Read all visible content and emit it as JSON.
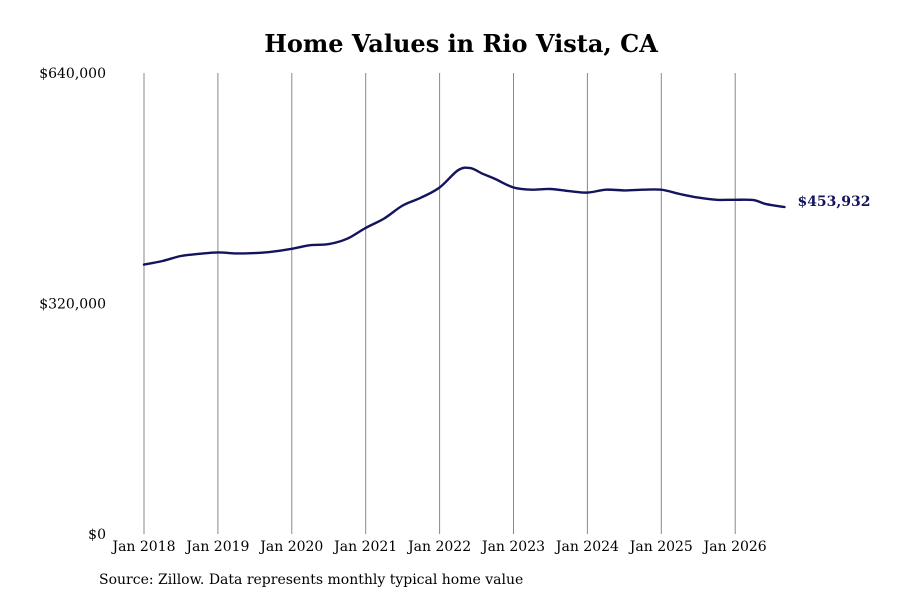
{
  "footer": {
    "source": "Source: Zillow. Data represents monthly typical home value"
  },
  "colors": {
    "line": "#14145e",
    "grid": "#888888",
    "end_label": "#14145e"
  },
  "chart_data": {
    "type": "line",
    "title": "Home Values in Rio Vista, CA",
    "xlabel": "",
    "ylabel": "",
    "x_tick_labels": [
      "Jan 2018",
      "Jan 2019",
      "Jan 2020",
      "Jan 2021",
      "Jan 2022",
      "Jan 2023",
      "Jan 2024",
      "Jan 2025",
      "Jan 2026"
    ],
    "y_tick_labels": [
      "$640,000",
      "$320,000",
      "$0"
    ],
    "y_ticks": [
      640000,
      320000,
      0
    ],
    "ylim": [
      0,
      640000
    ],
    "xlim": [
      "2018-01",
      "2026-09"
    ],
    "grid": "vertical",
    "end_label": "$453,932",
    "series": [
      {
        "values": [
          {
            "x": "2018-01",
            "y": 374000
          },
          {
            "x": "2018-04",
            "y": 379000
          },
          {
            "x": "2018-07",
            "y": 386000
          },
          {
            "x": "2018-10",
            "y": 389000
          },
          {
            "x": "2019-01",
            "y": 391000
          },
          {
            "x": "2019-04",
            "y": 389500
          },
          {
            "x": "2019-07",
            "y": 390000
          },
          {
            "x": "2019-10",
            "y": 392000
          },
          {
            "x": "2020-01",
            "y": 396000
          },
          {
            "x": "2020-04",
            "y": 401000
          },
          {
            "x": "2020-07",
            "y": 402500
          },
          {
            "x": "2020-10",
            "y": 410000
          },
          {
            "x": "2021-01",
            "y": 425000
          },
          {
            "x": "2021-04",
            "y": 438000
          },
          {
            "x": "2021-07",
            "y": 456000
          },
          {
            "x": "2021-10",
            "y": 467000
          },
          {
            "x": "2022-01",
            "y": 481000
          },
          {
            "x": "2022-04",
            "y": 505000
          },
          {
            "x": "2022-06",
            "y": 508000
          },
          {
            "x": "2022-08",
            "y": 500000
          },
          {
            "x": "2022-10",
            "y": 493000
          },
          {
            "x": "2023-01",
            "y": 481000
          },
          {
            "x": "2023-04",
            "y": 478000
          },
          {
            "x": "2023-07",
            "y": 479000
          },
          {
            "x": "2023-10",
            "y": 476000
          },
          {
            "x": "2024-01",
            "y": 474000
          },
          {
            "x": "2024-04",
            "y": 478000
          },
          {
            "x": "2024-07",
            "y": 477000
          },
          {
            "x": "2024-10",
            "y": 478000
          },
          {
            "x": "2025-01",
            "y": 478000
          },
          {
            "x": "2025-04",
            "y": 472000
          },
          {
            "x": "2025-07",
            "y": 467000
          },
          {
            "x": "2025-10",
            "y": 464000
          },
          {
            "x": "2026-01",
            "y": 464000
          },
          {
            "x": "2026-04",
            "y": 463500
          },
          {
            "x": "2026-06",
            "y": 458000
          },
          {
            "x": "2026-09",
            "y": 453932
          }
        ]
      }
    ]
  }
}
